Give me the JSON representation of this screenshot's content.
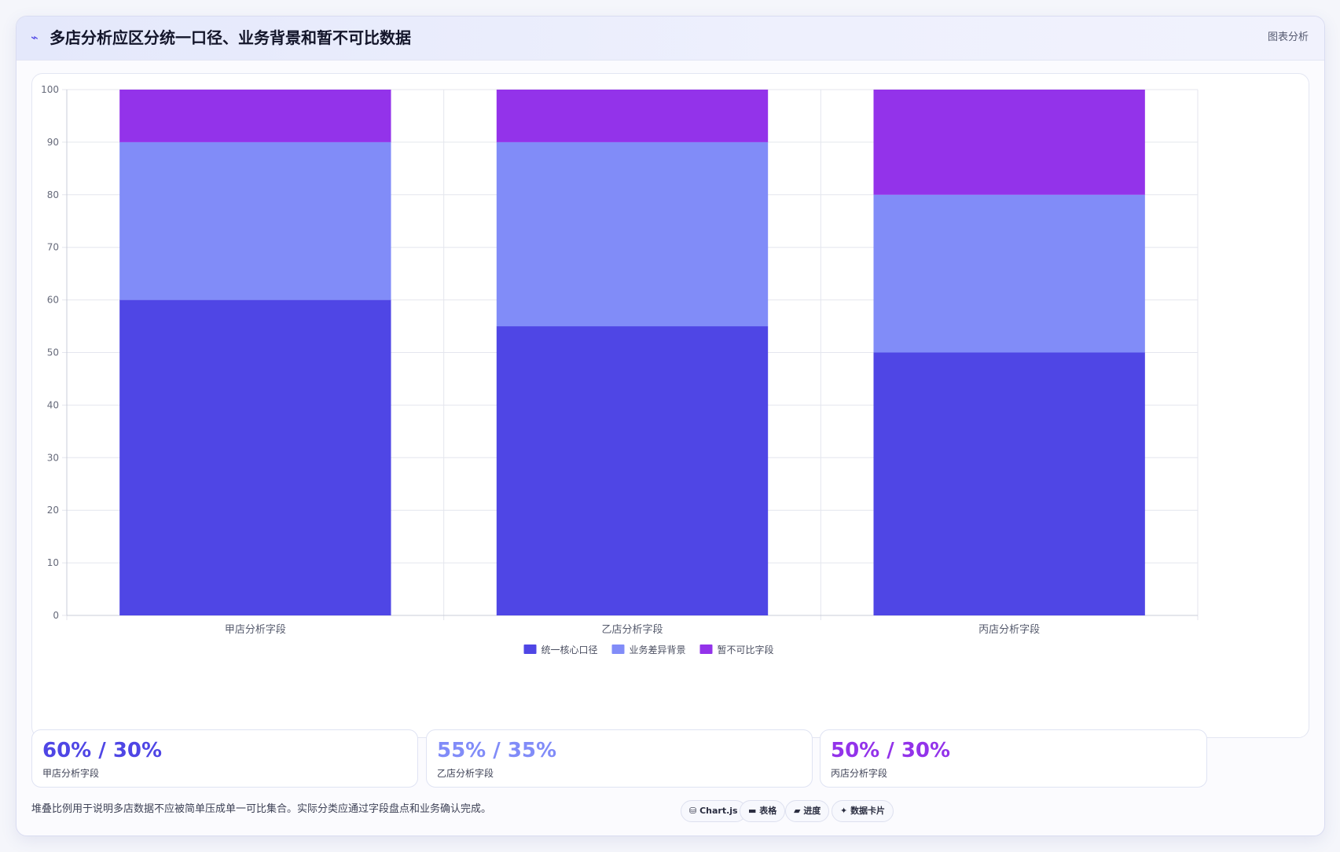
{
  "header": {
    "icon": "chart-line-icon",
    "title": "多店分析应区分统一口径、业务背景和暂不可比数据",
    "badge": "图表分析"
  },
  "colors": {
    "core": "#4f46e5",
    "background": "#818cf8",
    "incomparable": "#9333ea"
  },
  "chart_data": {
    "type": "bar",
    "stacked": true,
    "title": "",
    "xlabel": "",
    "ylabel": "",
    "ylim": [
      0,
      100
    ],
    "yticks": [
      0,
      10,
      20,
      30,
      40,
      50,
      60,
      70,
      80,
      90,
      100
    ],
    "categories": [
      "甲店分析字段",
      "乙店分析字段",
      "丙店分析字段"
    ],
    "series": [
      {
        "name": "统一核心口径",
        "values": [
          60,
          55,
          50
        ],
        "color": "#4f46e5"
      },
      {
        "name": "业务差异背景",
        "values": [
          30,
          35,
          30
        ],
        "color": "#818cf8"
      },
      {
        "name": "暂不可比字段",
        "values": [
          10,
          10,
          20
        ],
        "color": "#9333ea"
      }
    ],
    "grid": true,
    "legend": "bottom"
  },
  "stats": [
    {
      "value": "60% / 30%",
      "label": "甲店分析字段",
      "color": "#4f46e5"
    },
    {
      "value": "55% / 35%",
      "label": "乙店分析字段",
      "color": "#818cf8"
    },
    {
      "value": "50% / 30%",
      "label": "丙店分析字段",
      "color": "#9333ea"
    }
  ],
  "footer": {
    "note": "堆叠比例用于说明多店数据不应被简单压成单一可比集合。实际分类应通过字段盘点和业务确认完成。",
    "tags": [
      {
        "label": "Chart.js",
        "icon": "database-icon",
        "glyph": "⛁"
      },
      {
        "label": "表格",
        "icon": "table-icon",
        "glyph": "▬"
      },
      {
        "label": "进度",
        "icon": "progress-icon",
        "glyph": "▰"
      },
      {
        "label": "数据卡片",
        "icon": "sparkle-icon",
        "glyph": "✦"
      }
    ]
  }
}
